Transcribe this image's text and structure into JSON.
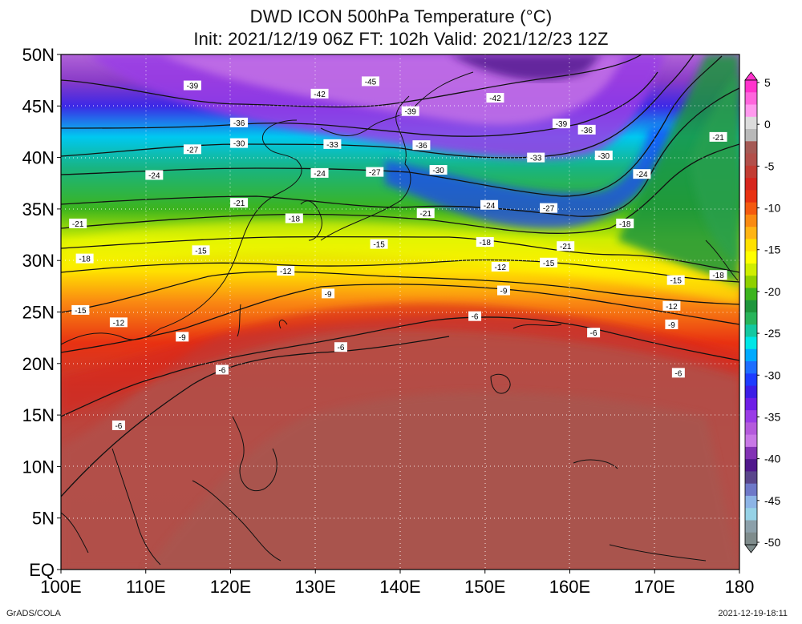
{
  "header": {
    "title_line1": "DWD ICON 500hPa Temperature (°C)",
    "title_line2": "Init: 2021/12/19 06Z  FT: 102h  Valid: 2021/12/23 12Z"
  },
  "map": {
    "lon_range": [
      100,
      180
    ],
    "lat_range": [
      0,
      50
    ],
    "lat_ticks": [
      "50N",
      "45N",
      "40N",
      "35N",
      "30N",
      "25N",
      "20N",
      "15N",
      "10N",
      "5N",
      "EQ"
    ],
    "lon_ticks": [
      "100E",
      "110E",
      "120E",
      "130E",
      "140E",
      "150E",
      "160E",
      "170E",
      "180"
    ],
    "contour_labels": [
      {
        "text": "-39",
        "lon": 115.5,
        "lat": 47.0
      },
      {
        "text": "-45",
        "lon": 136.5,
        "lat": 47.4
      },
      {
        "text": "-42",
        "lon": 130.5,
        "lat": 46.2
      },
      {
        "text": "-42",
        "lon": 151.2,
        "lat": 45.8
      },
      {
        "text": "-39",
        "lon": 141.2,
        "lat": 44.5
      },
      {
        "text": "-36",
        "lon": 121.0,
        "lat": 43.4
      },
      {
        "text": "-39",
        "lon": 159.0,
        "lat": 43.3
      },
      {
        "text": "-36",
        "lon": 162.0,
        "lat": 42.7
      },
      {
        "text": "-21",
        "lon": 177.5,
        "lat": 42.0
      },
      {
        "text": "-27",
        "lon": 115.5,
        "lat": 40.8
      },
      {
        "text": "-30",
        "lon": 121.0,
        "lat": 41.4
      },
      {
        "text": "-33",
        "lon": 132.0,
        "lat": 41.3
      },
      {
        "text": "-36",
        "lon": 142.5,
        "lat": 41.2
      },
      {
        "text": "-33",
        "lon": 156.0,
        "lat": 40.0
      },
      {
        "text": "-30",
        "lon": 164.0,
        "lat": 40.2
      },
      {
        "text": "-24",
        "lon": 111.0,
        "lat": 38.3
      },
      {
        "text": "-24",
        "lon": 130.5,
        "lat": 38.5
      },
      {
        "text": "-27",
        "lon": 137.0,
        "lat": 38.6
      },
      {
        "text": "-30",
        "lon": 144.5,
        "lat": 38.8
      },
      {
        "text": "-24",
        "lon": 168.5,
        "lat": 38.4
      },
      {
        "text": "-21",
        "lon": 121.0,
        "lat": 35.6
      },
      {
        "text": "-24",
        "lon": 150.5,
        "lat": 35.4
      },
      {
        "text": "-27",
        "lon": 157.5,
        "lat": 35.1
      },
      {
        "text": "-18",
        "lon": 127.5,
        "lat": 34.1
      },
      {
        "text": "-21",
        "lon": 143.0,
        "lat": 34.6
      },
      {
        "text": "-21",
        "lon": 102.0,
        "lat": 33.6
      },
      {
        "text": "-18",
        "lon": 166.5,
        "lat": 33.6
      },
      {
        "text": "-18",
        "lon": 150.0,
        "lat": 31.8
      },
      {
        "text": "-15",
        "lon": 137.5,
        "lat": 31.6
      },
      {
        "text": "-21",
        "lon": 159.5,
        "lat": 31.4
      },
      {
        "text": "-15",
        "lon": 116.5,
        "lat": 31.0
      },
      {
        "text": "-18",
        "lon": 102.8,
        "lat": 30.2
      },
      {
        "text": "-15",
        "lon": 157.5,
        "lat": 29.8
      },
      {
        "text": "-12",
        "lon": 151.8,
        "lat": 29.4
      },
      {
        "text": "-12",
        "lon": 126.5,
        "lat": 29.0
      },
      {
        "text": "-18",
        "lon": 177.5,
        "lat": 28.6
      },
      {
        "text": "-15",
        "lon": 172.5,
        "lat": 28.1
      },
      {
        "text": "-9",
        "lon": 152.2,
        "lat": 27.1
      },
      {
        "text": "-9",
        "lon": 131.5,
        "lat": 26.8
      },
      {
        "text": "-12",
        "lon": 172.0,
        "lat": 25.6
      },
      {
        "text": "-15",
        "lon": 102.3,
        "lat": 25.2
      },
      {
        "text": "-6",
        "lon": 148.8,
        "lat": 24.6
      },
      {
        "text": "-12",
        "lon": 106.8,
        "lat": 24.0
      },
      {
        "text": "-9",
        "lon": 172.0,
        "lat": 23.8
      },
      {
        "text": "-9",
        "lon": 114.3,
        "lat": 22.6
      },
      {
        "text": "-6",
        "lon": 162.8,
        "lat": 23.0
      },
      {
        "text": "-6",
        "lon": 133.0,
        "lat": 21.6
      },
      {
        "text": "-6",
        "lon": 119.0,
        "lat": 19.4
      },
      {
        "text": "-6",
        "lon": 172.8,
        "lat": 19.1
      },
      {
        "text": "-6",
        "lon": 106.8,
        "lat": 14.0
      }
    ]
  },
  "colorbar": {
    "labels": [
      "5",
      "0",
      "-5",
      "-10",
      "-15",
      "-20",
      "-25",
      "-30",
      "-35",
      "-40",
      "-45",
      "-50"
    ],
    "colors": [
      "#ff33cc",
      "#ff66dd",
      "#ff99ee",
      "#dcdcdc",
      "#b9b9b9",
      "#a55a55",
      "#b24f4a",
      "#c23c33",
      "#d6261e",
      "#e83212",
      "#f45a10",
      "#fa8a12",
      "#ffb414",
      "#ffe100",
      "#ffff00",
      "#cfee00",
      "#8fd000",
      "#3cb41e",
      "#1e963c",
      "#28b45a",
      "#14c8a0",
      "#00e6e6",
      "#00aaff",
      "#1e6eff",
      "#1e3cff",
      "#3c1ee6",
      "#6e1ee6",
      "#9a3ce6",
      "#b45adc",
      "#c878e6",
      "#8232b4",
      "#50188c",
      "#5a468c",
      "#6e78c8",
      "#8cb4e6",
      "#96d2e6",
      "#8ca0aa",
      "#7f8c8c"
    ]
  },
  "footer": {
    "left": "GrADS/COLA",
    "right": "2021-12-19-18:11"
  }
}
